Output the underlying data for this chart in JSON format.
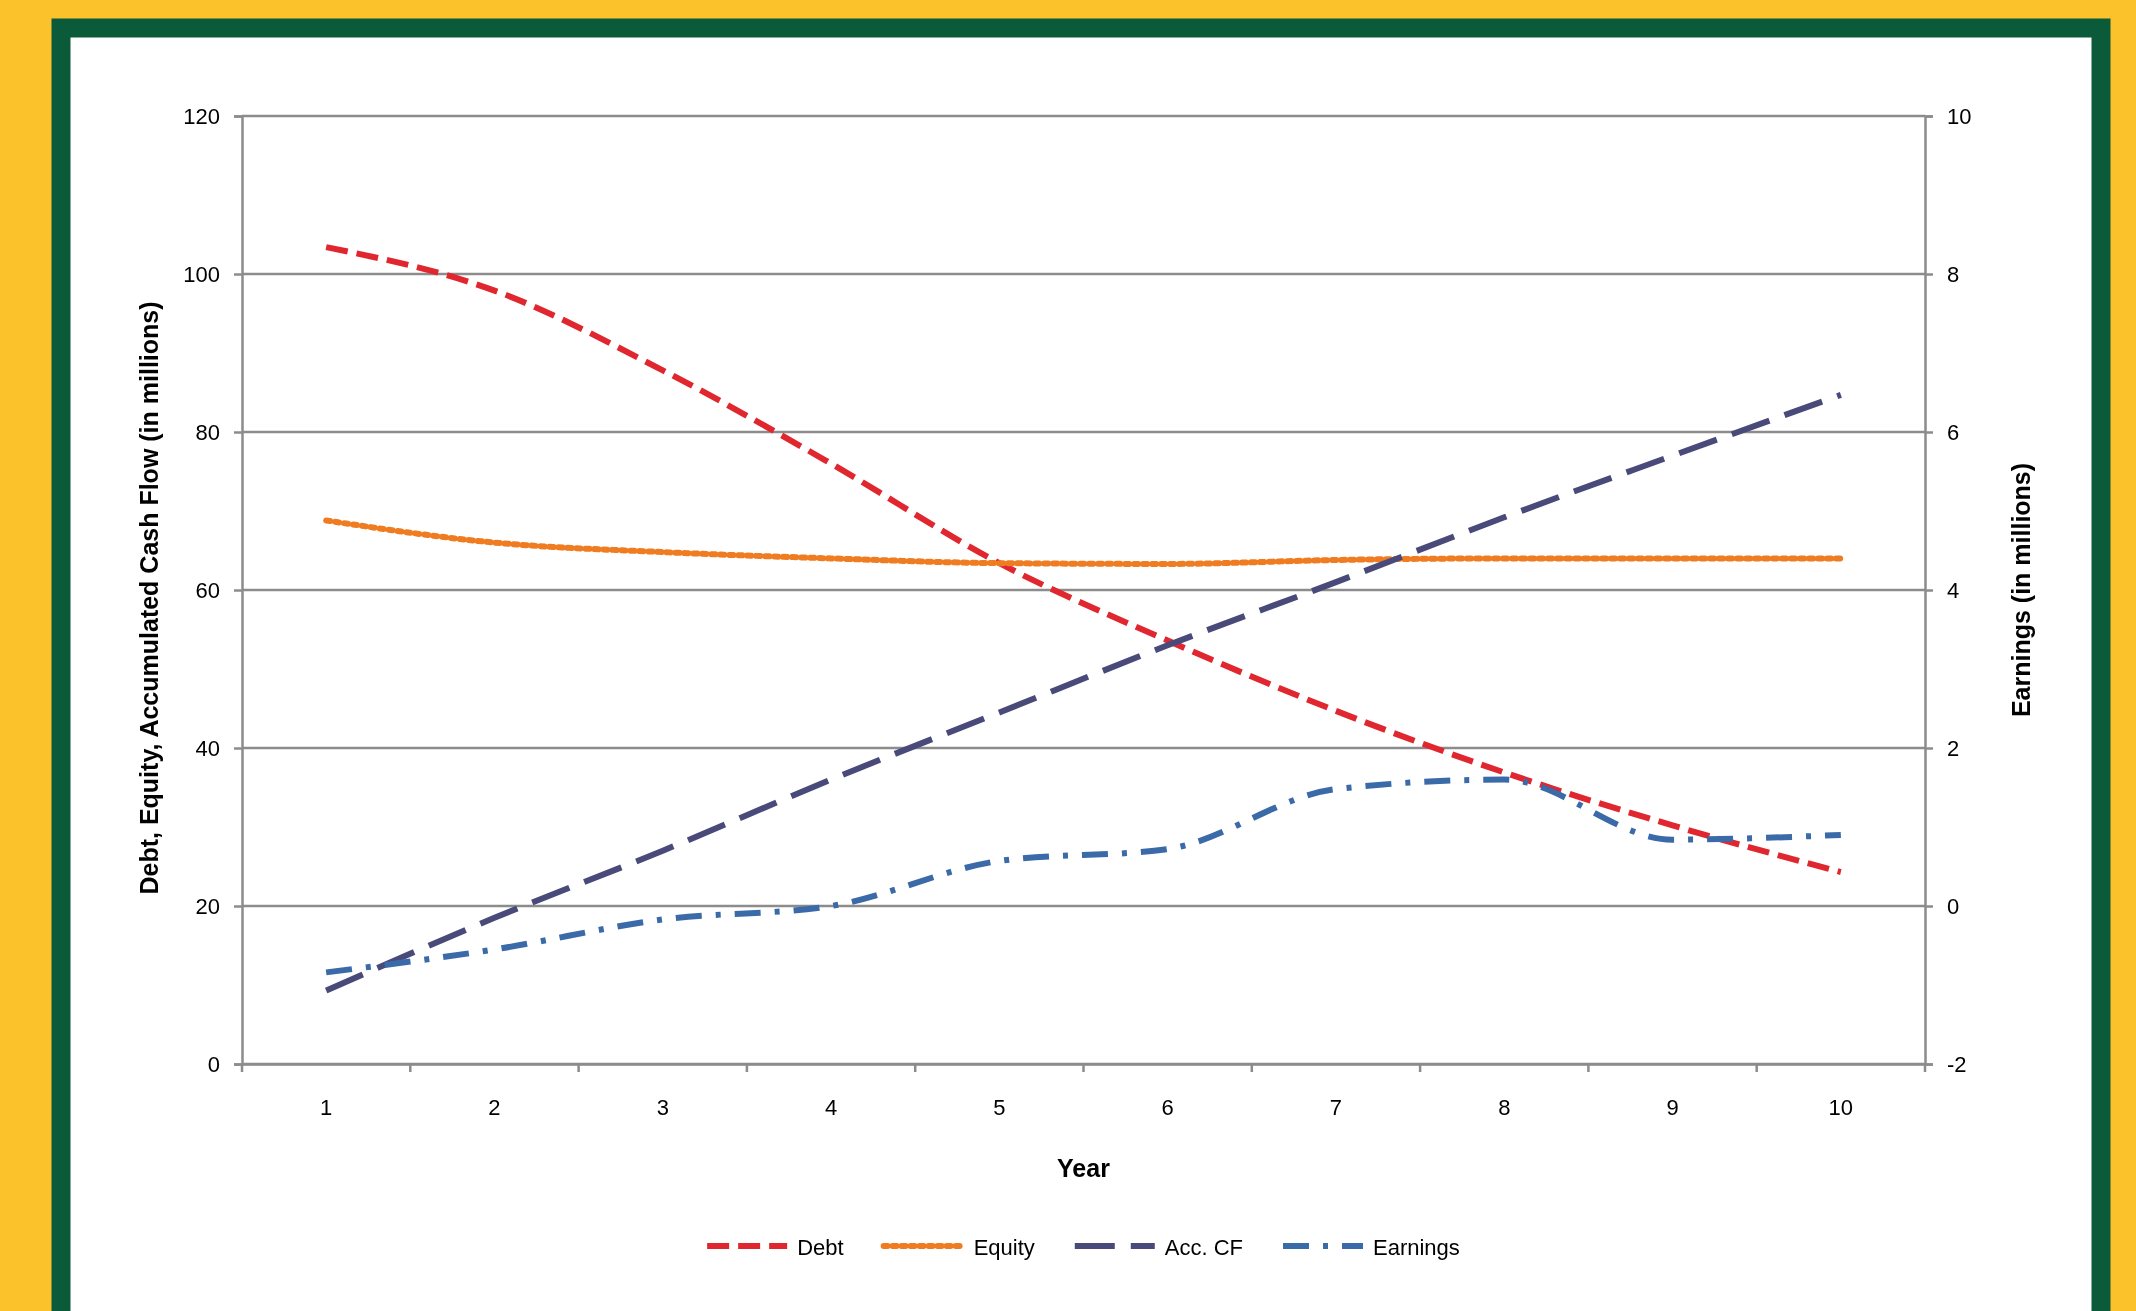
{
  "chart_data": {
    "type": "line",
    "xlabel": "Year",
    "ylabel": "Debt, Equity, Accumulated  Cash Flow (in millions)",
    "y2label": "Earnings (in millions)",
    "categories": [
      "1",
      "2",
      "3",
      "4",
      "5",
      "6",
      "7",
      "8",
      "9",
      "10"
    ],
    "ylim": [
      0,
      120
    ],
    "yticks": [
      0,
      20,
      40,
      60,
      80,
      100,
      120
    ],
    "y2lim": [
      -2,
      10
    ],
    "y2ticks": [
      -2,
      0,
      2,
      4,
      6,
      8,
      10
    ],
    "grid": "y",
    "legend": "bottom",
    "marker": "none",
    "series": [
      {
        "name": "Debt",
        "color": "#e0262e",
        "line_style": "dashed",
        "values": [
          103.4,
          97.9,
          87.8,
          76,
          63.4,
          53.6,
          44.7,
          36.9,
          30.2,
          24.3
        ]
      },
      {
        "name": "Equity",
        "color": "#f07c22",
        "line_style": "dotted",
        "values": [
          68.8,
          66,
          64.8,
          64,
          63.4,
          63.3,
          63.8,
          64,
          64,
          64
        ]
      },
      {
        "name": "Acc. CF",
        "color": "#4a4a7a",
        "line_style": "longdash",
        "values": [
          9.3,
          18.5,
          27,
          36,
          44.5,
          53,
          61,
          69.2,
          77,
          84.7
        ]
      },
      {
        "name": "Earnings",
        "color": "#3b6aa8",
        "line_style": "dashdot",
        "axis": "y2",
        "values": [
          -0.84,
          -0.55,
          -0.17,
          0,
          0.57,
          0.72,
          1.48,
          1.6,
          0.84,
          0.9
        ]
      }
    ]
  }
}
